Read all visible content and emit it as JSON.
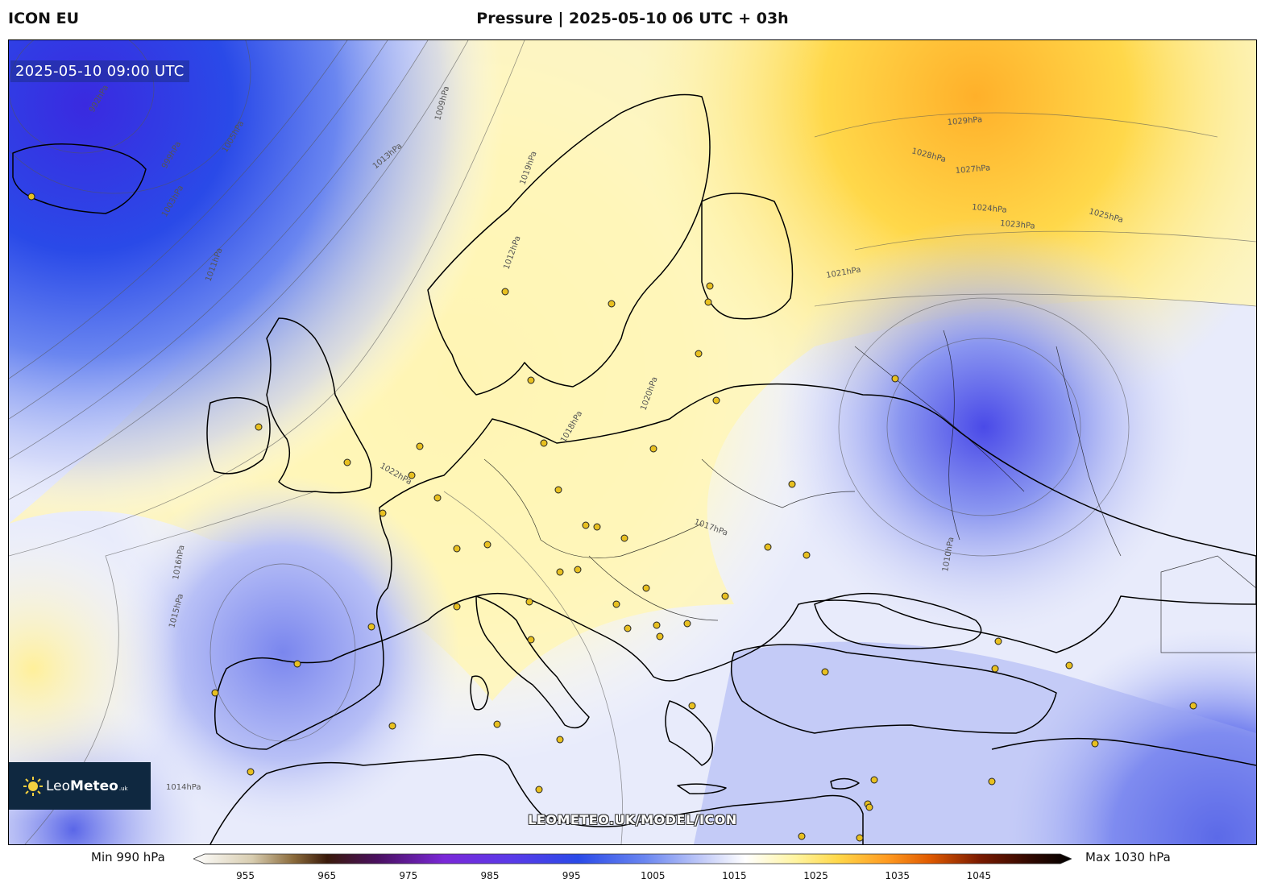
{
  "header": {
    "model": "ICON EU",
    "title": "Pressure | 2025-05-10 06 UTC + 03h"
  },
  "map": {
    "valid_time": "2025-05-10 09:00 UTC",
    "watermark": "LEOMETEO.UK/MODEL/ICON",
    "logo": {
      "brand_light": "Leo",
      "brand_bold": "Meteo",
      "suffix": ".uk"
    },
    "isobar_labels": [
      "992hPa",
      "999hPa",
      "1003hPa",
      "1005hPa",
      "1009hPa",
      "1010hPa",
      "1011hPa",
      "1012hPa",
      "1013hPa",
      "1014hPa",
      "1015hPa",
      "1016hPa",
      "1017hPa",
      "1018hPa",
      "1019hPa",
      "1020hPa",
      "1021hPa",
      "1022hPa",
      "1023hPa",
      "1024hPa",
      "1025hPa",
      "1027hPa",
      "1028hPa",
      "1029hPa"
    ]
  },
  "colorbar": {
    "min_label": "Min 990 hPa",
    "max_label": "Max 1030 hPa",
    "ticks": [
      "955",
      "965",
      "975",
      "985",
      "995",
      "1005",
      "1015",
      "1025",
      "1035",
      "1045"
    ],
    "range": [
      950,
      1055
    ],
    "stops": [
      {
        "v": 950,
        "c": "#ffffff"
      },
      {
        "v": 957,
        "c": "#d8cdb0"
      },
      {
        "v": 962,
        "c": "#8a6a3a"
      },
      {
        "v": 966,
        "c": "#3a1a0a"
      },
      {
        "v": 972,
        "c": "#4a1060"
      },
      {
        "v": 980,
        "c": "#7a28d8"
      },
      {
        "v": 988,
        "c": "#5a3ae8"
      },
      {
        "v": 996,
        "c": "#2a4ae8"
      },
      {
        "v": 1004,
        "c": "#6a86f0"
      },
      {
        "v": 1011,
        "c": "#c4ccf8"
      },
      {
        "v": 1016,
        "c": "#ffffff"
      },
      {
        "v": 1022,
        "c": "#fff4a0"
      },
      {
        "v": 1027,
        "c": "#ffd84a"
      },
      {
        "v": 1033,
        "c": "#ff9a20"
      },
      {
        "v": 1038,
        "c": "#e05a00"
      },
      {
        "v": 1044,
        "c": "#7a1a00"
      },
      {
        "v": 1050,
        "c": "#300800"
      },
      {
        "v": 1055,
        "c": "#000000"
      }
    ]
  },
  "colors": {
    "low": "#2a4ae8",
    "high": "#ffc83a",
    "neutral": "#ffffff",
    "land_border": "#000000",
    "city_marker": "#e8c020"
  }
}
